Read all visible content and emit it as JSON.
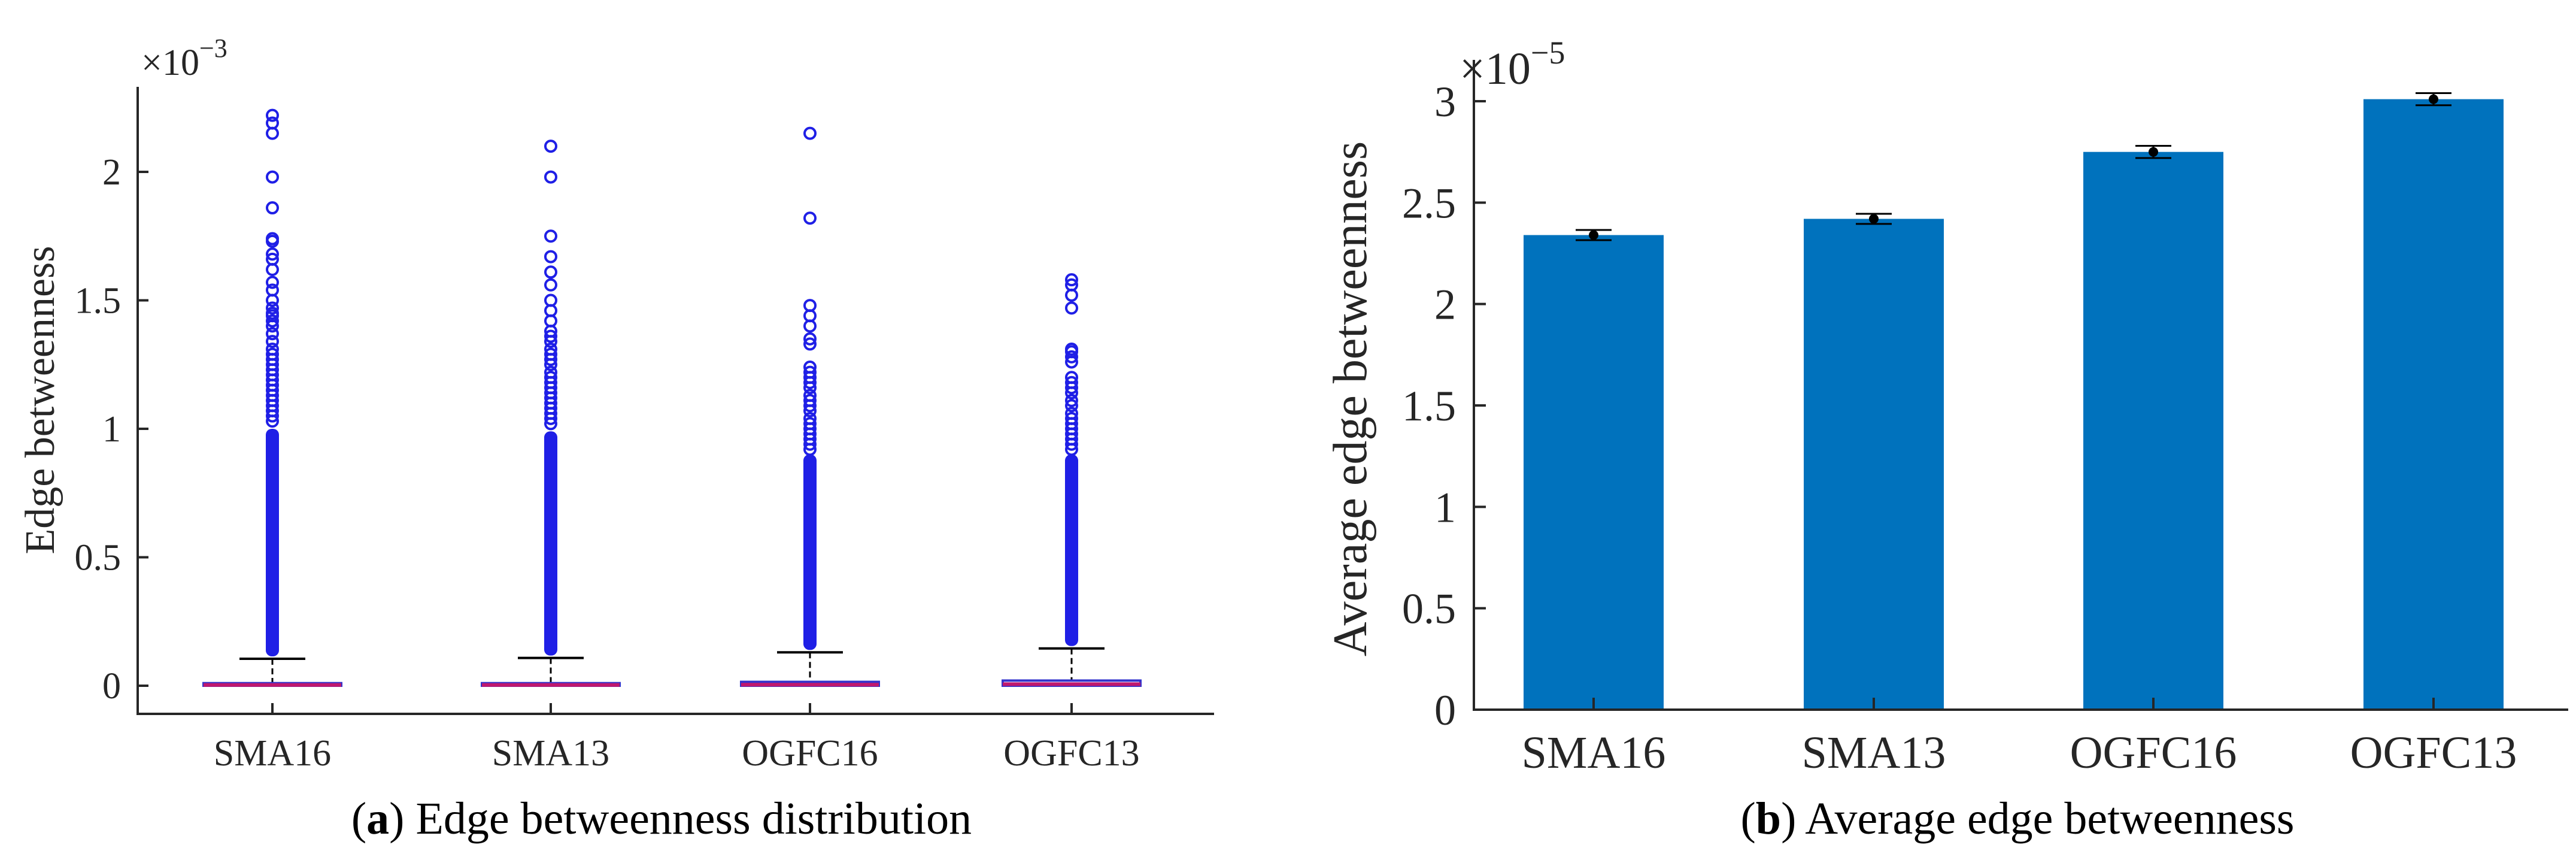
{
  "chart_data": [
    {
      "id": "a",
      "type": "box",
      "title": "",
      "xlabel": "",
      "ylabel": "Edge betweenness",
      "multiplier_label": "×10",
      "multiplier_exp": "−3",
      "categories": [
        "SMA16",
        "SMA13",
        "OGFC16",
        "OGFC13"
      ],
      "ylim": [
        -0.1,
        2.3
      ],
      "yticks": [
        0,
        0.5,
        1,
        1.5,
        2
      ],
      "ytick_labels": [
        "0",
        "0.5",
        "1",
        "1.5",
        "2"
      ],
      "medians": [
        0.003,
        0.003,
        0.004,
        0.006
      ],
      "q1": [
        0.0,
        0.0,
        0.0,
        0.0
      ],
      "q3": [
        0.01,
        0.01,
        0.015,
        0.02
      ],
      "upper_whiskers": [
        0.105,
        0.108,
        0.13,
        0.145
      ],
      "lower_whiskers": [
        0,
        0,
        0,
        0
      ],
      "outlier_dense_top": [
        1.0,
        0.99,
        0.9,
        0.9
      ],
      "outliers": [
        [
          2.22,
          2.19,
          2.15,
          1.98,
          1.86,
          1.74,
          1.73,
          1.68,
          1.66,
          1.62,
          1.57,
          1.54,
          1.5,
          1.47,
          1.45,
          1.44,
          1.42,
          1.4,
          1.37,
          1.34,
          1.31,
          1.29,
          1.27,
          1.25,
          1.23,
          1.21,
          1.19,
          1.17,
          1.15,
          1.13,
          1.11,
          1.09,
          1.07,
          1.05,
          1.03
        ],
        [
          2.1,
          1.98,
          1.75,
          1.67,
          1.61,
          1.56,
          1.5,
          1.46,
          1.42,
          1.38,
          1.36,
          1.34,
          1.31,
          1.29,
          1.27,
          1.25,
          1.22,
          1.2,
          1.18,
          1.16,
          1.14,
          1.12,
          1.1,
          1.08,
          1.06,
          1.04,
          1.02
        ],
        [
          2.15,
          1.82,
          1.48,
          1.44,
          1.4,
          1.35,
          1.33,
          1.24,
          1.22,
          1.2,
          1.18,
          1.16,
          1.13,
          1.11,
          1.09,
          1.07,
          1.04,
          1.02,
          1.0,
          0.98,
          0.96,
          0.94,
          0.92
        ],
        [
          1.58,
          1.56,
          1.52,
          1.47,
          1.31,
          1.3,
          1.28,
          1.26,
          1.2,
          1.18,
          1.16,
          1.14,
          1.11,
          1.09,
          1.06,
          1.04,
          1.02,
          1.0,
          0.98,
          0.96,
          0.94,
          0.92
        ]
      ],
      "caption_letter": "a",
      "caption_text": "Edge betweenness distribution",
      "outlier_color": "#1f1fe6",
      "median_color": "#c0186e",
      "box_color": "#3333cc"
    },
    {
      "id": "b",
      "type": "bar",
      "title": "",
      "xlabel": "",
      "ylabel": "Average edge betweenness",
      "multiplier_label": "×10",
      "multiplier_exp": "−5",
      "categories": [
        "SMA16",
        "SMA13",
        "OGFC16",
        "OGFC13"
      ],
      "values": [
        2.34,
        2.42,
        2.75,
        3.01
      ],
      "errors": [
        0.025,
        0.025,
        0.03,
        0.03
      ],
      "ylim": [
        0,
        3.05
      ],
      "yticks": [
        0,
        0.5,
        1,
        1.5,
        2,
        2.5,
        3
      ],
      "ytick_labels": [
        "0",
        "0.5",
        "1",
        "1.5",
        "2",
        "2.5",
        "3"
      ],
      "caption_letter": "b",
      "caption_text": "Average edge betweenness",
      "bar_color": "#0072bd"
    }
  ]
}
